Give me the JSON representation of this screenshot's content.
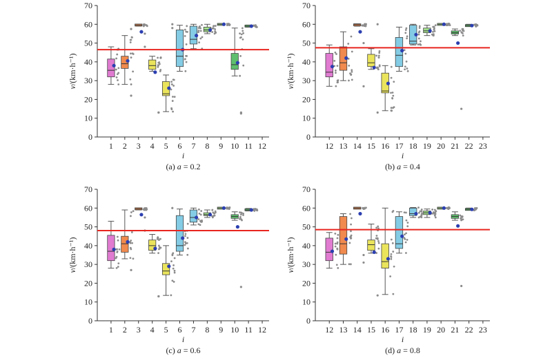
{
  "figure": {
    "reference_line_color": "#e8251f",
    "mean_marker_color": "#2c3fb0",
    "scatter_color": "#8c8c8c"
  },
  "chart_data": [
    {
      "type": "box",
      "caption_prefix": "(a) ",
      "caption_var": "a",
      "caption_value": " = 0.2",
      "ylabel_var": "v",
      "ylabel_unit": "/(km·h⁻¹)",
      "xlabel": "i",
      "ylim": [
        0,
        70
      ],
      "yticks": [
        0,
        10,
        20,
        30,
        40,
        50,
        60,
        70
      ],
      "categories": [
        "1",
        "2",
        "3",
        "4",
        "5",
        "6",
        "7",
        "8",
        "9",
        "10",
        "11",
        "12"
      ],
      "reference_line": 46.5,
      "boxes": [
        {
          "category": "1",
          "color": "#e07bd1",
          "whisker_low": 28,
          "q1": 32,
          "median": 35.5,
          "q3": 41.5,
          "whisker_high": 48,
          "mean": 38,
          "outliers": []
        },
        {
          "category": "2",
          "color": "#f08a4e",
          "whisker_low": 28,
          "q1": 36.5,
          "median": 39,
          "q3": 43,
          "whisker_high": 54,
          "mean": 40.5,
          "outliers": [
            22,
            57.5
          ]
        },
        {
          "category": "3",
          "color": "#f08a4e",
          "whisker_low": 59,
          "q1": 59.3,
          "median": 59.6,
          "q3": 59.9,
          "whisker_high": 60,
          "mean": 56,
          "outliers": [
            48,
            55
          ]
        },
        {
          "category": "4",
          "color": "#eae45c",
          "whisker_low": 35,
          "q1": 36,
          "median": 38,
          "q3": 41,
          "whisker_high": 43,
          "mean": 34.5,
          "outliers": [
            13,
            13
          ]
        },
        {
          "category": "5",
          "color": "#eae45c",
          "whisker_low": 13.5,
          "q1": 22,
          "median": 23,
          "q3": 29.5,
          "whisker_high": 33,
          "mean": 26,
          "outliers": [
            58,
            60
          ]
        },
        {
          "category": "6",
          "color": "#84cce5",
          "whisker_low": 35,
          "q1": 37.5,
          "median": 43,
          "q3": 57,
          "whisker_high": 59.5,
          "mean": 46.5,
          "outliers": []
        },
        {
          "category": "7",
          "color": "#84cce5",
          "whisker_low": 47,
          "q1": 49.5,
          "median": 52,
          "q3": 59,
          "whisker_high": 60,
          "mean": 54,
          "outliers": []
        },
        {
          "category": "8",
          "color": "#a4e08c",
          "whisker_low": 55,
          "q1": 56,
          "median": 57,
          "q3": 58.5,
          "whisker_high": 60,
          "mean": 57,
          "outliers": []
        },
        {
          "category": "9",
          "color": "#a4e08c",
          "whisker_low": 59.5,
          "q1": 59.7,
          "median": 60,
          "q3": 60.2,
          "whisker_high": 60.4,
          "mean": 60,
          "outliers": []
        },
        {
          "category": "10",
          "color": "#5fbf6e",
          "whisker_low": 32.5,
          "q1": 36,
          "median": 38.5,
          "q3": 44.5,
          "whisker_high": 58,
          "mean": 39.5,
          "outliers": [
            13,
            12.5
          ]
        },
        {
          "category": "11",
          "color": "#5fbf6e",
          "whisker_low": 58.5,
          "q1": 58.8,
          "median": 59,
          "q3": 59.3,
          "whisker_high": 59.6,
          "mean": 59,
          "outliers": []
        }
      ]
    },
    {
      "type": "box",
      "caption_prefix": "(b) ",
      "caption_var": "a",
      "caption_value": " = 0.4",
      "ylabel_var": "v",
      "ylabel_unit": "/(km·h⁻¹)",
      "xlabel": "i",
      "ylim": [
        0,
        70
      ],
      "yticks": [
        0,
        10,
        20,
        30,
        40,
        50,
        60,
        70
      ],
      "categories": [
        "12",
        "13",
        "14",
        "15",
        "16",
        "17",
        "18",
        "19",
        "20",
        "21",
        "22",
        "23"
      ],
      "reference_line": 47.5,
      "boxes": [
        {
          "category": "12",
          "color": "#e07bd1",
          "whisker_low": 27,
          "q1": 32,
          "median": 34.5,
          "q3": 44.5,
          "whisker_high": 49,
          "mean": 37.5,
          "outliers": []
        },
        {
          "category": "13",
          "color": "#f08a4e",
          "whisker_low": 30,
          "q1": 35.5,
          "median": 39.5,
          "q3": 48,
          "whisker_high": 56,
          "mean": 42,
          "outliers": []
        },
        {
          "category": "14",
          "color": "#f08a4e",
          "whisker_low": 59,
          "q1": 59.4,
          "median": 59.8,
          "q3": 60,
          "whisker_high": 60.2,
          "mean": 56,
          "outliers": [
            27,
            50
          ]
        },
        {
          "category": "15",
          "color": "#eae45c",
          "whisker_low": 36,
          "q1": 37.5,
          "median": 39.5,
          "q3": 44,
          "whisker_high": 47,
          "mean": 37,
          "outliers": [
            13,
            60
          ]
        },
        {
          "category": "16",
          "color": "#eae45c",
          "whisker_low": 14,
          "q1": 23.5,
          "median": 24.5,
          "q3": 34,
          "whisker_high": 38,
          "mean": 28.5,
          "outliers": [
            14
          ]
        },
        {
          "category": "17",
          "color": "#84cce5",
          "whisker_low": 35,
          "q1": 37.5,
          "median": 43.5,
          "q3": 53,
          "whisker_high": 58.5,
          "mean": 46,
          "outliers": []
        },
        {
          "category": "18",
          "color": "#84cce5",
          "whisker_low": 49,
          "q1": 49.5,
          "median": 51,
          "q3": 59.5,
          "whisker_high": 60,
          "mean": 54.5,
          "outliers": []
        },
        {
          "category": "19",
          "color": "#a4e08c",
          "whisker_low": 54,
          "q1": 55.5,
          "median": 56.5,
          "q3": 58,
          "whisker_high": 59.5,
          "mean": 56.5,
          "outliers": []
        },
        {
          "category": "20",
          "color": "#a4e08c",
          "whisker_low": 59.5,
          "q1": 59.7,
          "median": 60,
          "q3": 60.2,
          "whisker_high": 60.4,
          "mean": 60,
          "outliers": []
        },
        {
          "category": "21",
          "color": "#5fbf6e",
          "whisker_low": 54,
          "q1": 54.8,
          "median": 55.5,
          "q3": 56.5,
          "whisker_high": 57.5,
          "mean": 50,
          "outliers": [
            15
          ]
        },
        {
          "category": "22",
          "color": "#5fbf6e",
          "whisker_low": 58.8,
          "q1": 59,
          "median": 59.3,
          "q3": 59.6,
          "whisker_high": 60,
          "mean": 59.3,
          "outliers": []
        }
      ]
    },
    {
      "type": "box",
      "caption_prefix": "(c) ",
      "caption_var": "a",
      "caption_value": " = 0.6",
      "ylabel_var": "v",
      "ylabel_unit": "/(km·h⁻¹)",
      "xlabel": "i",
      "ylim": [
        0,
        70
      ],
      "yticks": [
        0,
        10,
        20,
        30,
        40,
        50,
        60,
        70
      ],
      "categories": [
        "1",
        "2",
        "3",
        "4",
        "5",
        "6",
        "7",
        "8",
        "9",
        "10",
        "11",
        "12"
      ],
      "reference_line": 48,
      "boxes": [
        {
          "category": "1",
          "color": "#e07bd1",
          "whisker_low": 28,
          "q1": 32,
          "median": 37,
          "q3": 45.5,
          "whisker_high": 53,
          "mean": 38,
          "outliers": []
        },
        {
          "category": "2",
          "color": "#f08a4e",
          "whisker_low": 33,
          "q1": 36.5,
          "median": 41,
          "q3": 45,
          "whisker_high": 59,
          "mean": 42,
          "outliers": [
            27
          ]
        },
        {
          "category": "3",
          "color": "#f08a4e",
          "whisker_low": 59,
          "q1": 59.3,
          "median": 59.6,
          "q3": 59.9,
          "whisker_high": 60,
          "mean": 56.5,
          "outliers": [
            48,
            55
          ]
        },
        {
          "category": "4",
          "color": "#eae45c",
          "whisker_low": 36,
          "q1": 37.5,
          "median": 40,
          "q3": 43,
          "whisker_high": 46,
          "mean": 38.5,
          "outliers": [
            13,
            13
          ]
        },
        {
          "category": "5",
          "color": "#eae45c",
          "whisker_low": 13.5,
          "q1": 24.5,
          "median": 26.5,
          "q3": 30.5,
          "whisker_high": 40,
          "mean": 29,
          "outliers": [
            60
          ]
        },
        {
          "category": "6",
          "color": "#84cce5",
          "whisker_low": 35,
          "q1": 37,
          "median": 40,
          "q3": 56,
          "whisker_high": 59.5,
          "mean": 44,
          "outliers": []
        },
        {
          "category": "7",
          "color": "#84cce5",
          "whisker_low": 51,
          "q1": 52.5,
          "median": 55,
          "q3": 59,
          "whisker_high": 60,
          "mean": 55,
          "outliers": []
        },
        {
          "category": "8",
          "color": "#a4e08c",
          "whisker_low": 55,
          "q1": 56,
          "median": 56.5,
          "q3": 57.5,
          "whisker_high": 59,
          "mean": 56.5,
          "outliers": []
        },
        {
          "category": "9",
          "color": "#a4e08c",
          "whisker_low": 59.5,
          "q1": 59.7,
          "median": 60,
          "q3": 60.2,
          "whisker_high": 60.4,
          "mean": 60,
          "outliers": []
        },
        {
          "category": "10",
          "color": "#5fbf6e",
          "whisker_low": 53.5,
          "q1": 54.5,
          "median": 55.5,
          "q3": 56.5,
          "whisker_high": 58,
          "mean": 50,
          "outliers": [
            18
          ]
        },
        {
          "category": "11",
          "color": "#5fbf6e",
          "whisker_low": 58.5,
          "q1": 58.8,
          "median": 59,
          "q3": 59.4,
          "whisker_high": 59.8,
          "mean": 59,
          "outliers": []
        }
      ]
    },
    {
      "type": "box",
      "caption_prefix": "(d) ",
      "caption_var": "a",
      "caption_value": " = 0.8",
      "ylabel_var": "v",
      "ylabel_unit": "/(km·h⁻¹)",
      "xlabel": "i",
      "ylim": [
        0,
        70
      ],
      "yticks": [
        0,
        10,
        20,
        30,
        40,
        50,
        60,
        70
      ],
      "categories": [
        "12",
        "13",
        "14",
        "15",
        "16",
        "17",
        "18",
        "19",
        "20",
        "21",
        "22",
        "23"
      ],
      "reference_line": 48.5,
      "boxes": [
        {
          "category": "12",
          "color": "#e07bd1",
          "whisker_low": 28,
          "q1": 32,
          "median": 36.5,
          "q3": 44,
          "whisker_high": 47,
          "mean": 37,
          "outliers": []
        },
        {
          "category": "13",
          "color": "#f08a4e",
          "whisker_low": 30,
          "q1": 35.5,
          "median": 41,
          "q3": 55.5,
          "whisker_high": 57,
          "mean": 43.5,
          "outliers": []
        },
        {
          "category": "14",
          "color": "#f08a4e",
          "whisker_low": 59.5,
          "q1": 59.7,
          "median": 60,
          "q3": 60.2,
          "whisker_high": 60.4,
          "mean": 57,
          "outliers": [
            31,
            35
          ]
        },
        {
          "category": "15",
          "color": "#eae45c",
          "whisker_low": 36,
          "q1": 37.5,
          "median": 40.5,
          "q3": 43,
          "whisker_high": 51.5,
          "mean": 36.5,
          "outliers": [
            13.5
          ]
        },
        {
          "category": "16",
          "color": "#eae45c",
          "whisker_low": 14,
          "q1": 28,
          "median": 31.5,
          "q3": 41,
          "whisker_high": 60,
          "mean": 33,
          "outliers": []
        },
        {
          "category": "17",
          "color": "#84cce5",
          "whisker_low": 36,
          "q1": 38.5,
          "median": 41,
          "q3": 55.5,
          "whisker_high": 58,
          "mean": 45,
          "outliers": []
        },
        {
          "category": "18",
          "color": "#84cce5",
          "whisker_low": 55,
          "q1": 56,
          "median": 57,
          "q3": 60,
          "whisker_high": 60.3,
          "mean": 57,
          "outliers": []
        },
        {
          "category": "19",
          "color": "#a4e08c",
          "whisker_low": 55,
          "q1": 56.5,
          "median": 57.5,
          "q3": 58.5,
          "whisker_high": 59.5,
          "mean": 57.5,
          "outliers": []
        },
        {
          "category": "20",
          "color": "#a4e08c",
          "whisker_low": 59.5,
          "q1": 59.7,
          "median": 60,
          "q3": 60.2,
          "whisker_high": 60.4,
          "mean": 60,
          "outliers": []
        },
        {
          "category": "21",
          "color": "#5fbf6e",
          "whisker_low": 53.5,
          "q1": 54.5,
          "median": 55.5,
          "q3": 56.5,
          "whisker_high": 58,
          "mean": 50.5,
          "outliers": [
            18.5
          ]
        },
        {
          "category": "22",
          "color": "#5fbf6e",
          "whisker_low": 58.8,
          "q1": 59,
          "median": 59.3,
          "q3": 59.6,
          "whisker_high": 60,
          "mean": 59.3,
          "outliers": []
        }
      ]
    }
  ]
}
